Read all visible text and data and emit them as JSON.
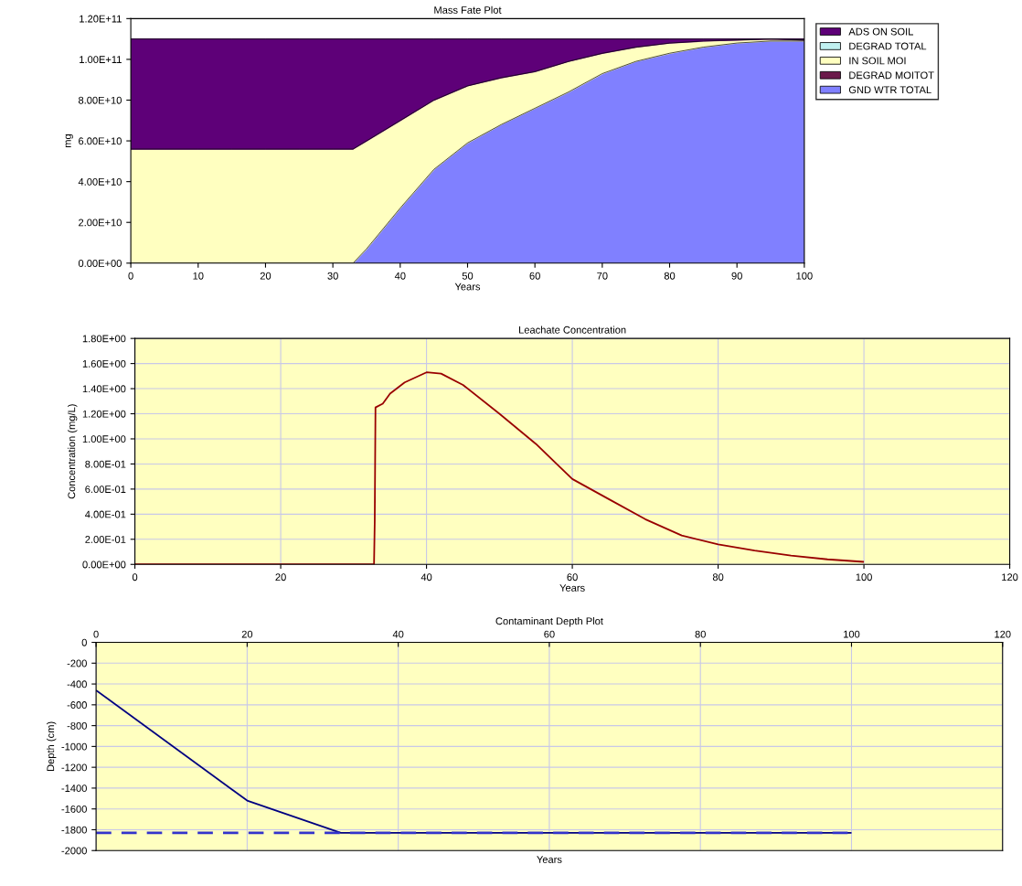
{
  "chart_data": [
    {
      "type": "area",
      "title": "Mass Fate Plot",
      "xlabel": "Years",
      "ylabel": "mg",
      "stacked": true,
      "x": [
        0,
        5,
        10,
        15,
        20,
        25,
        30,
        33,
        35,
        40,
        45,
        50,
        55,
        60,
        65,
        70,
        75,
        80,
        85,
        90,
        95,
        100
      ],
      "series": [
        {
          "name": "GND WTR TOTAL",
          "color": "#8080ff",
          "values": [
            0,
            0,
            0,
            0,
            0,
            0,
            0,
            0,
            7000000000.0,
            27000000000.0,
            46000000000.0,
            59000000000.0,
            68000000000.0,
            76000000000.0,
            84000000000.0,
            93000000000.0,
            99000000000.0,
            103000000000.0,
            106000000000.0,
            108000000000.0,
            109000000000.0,
            109000000000.0
          ]
        },
        {
          "name": "DEGRAD MOITOT",
          "color": "#6b1a4a",
          "values": [
            null,
            null,
            null,
            null,
            null,
            null,
            null,
            null,
            null,
            null,
            null,
            null,
            null,
            null,
            null,
            null,
            null,
            null,
            null,
            null,
            null,
            null
          ]
        },
        {
          "name": "IN SOIL MOI",
          "color": "#ffffc0",
          "values": [
            56000000000.0,
            56000000000.0,
            56000000000.0,
            56000000000.0,
            56000000000.0,
            56000000000.0,
            56000000000.0,
            56000000000.0,
            53000000000.0,
            43000000000.0,
            34000000000.0,
            28000000000.0,
            23000000000.0,
            18000000000.0,
            15000000000.0,
            10000000000.0,
            7000000000.0,
            5000000000.0,
            3000000000.0,
            1500000000.0,
            1000000000.0,
            500000000.0
          ]
        },
        {
          "name": "DEGRAD TOTAL",
          "color": "#c0f0f0",
          "values": [
            null,
            null,
            null,
            null,
            null,
            null,
            null,
            null,
            null,
            null,
            null,
            null,
            null,
            null,
            null,
            null,
            null,
            null,
            null,
            null,
            null,
            null
          ]
        },
        {
          "name": "ADS ON SOIL",
          "color": "#5e0078",
          "values": [
            54000000000.0,
            54000000000.0,
            54000000000.0,
            54000000000.0,
            54000000000.0,
            54000000000.0,
            54000000000.0,
            54000000000.0,
            50000000000.0,
            40000000000.0,
            30000000000.0,
            23000000000.0,
            19000000000.0,
            16000000000.0,
            11000000000.0,
            7000000000.0,
            4000000000.0,
            2000000000.0,
            1000000000.0,
            500000000.0,
            0.0,
            500000000.0
          ]
        }
      ],
      "xlim": [
        0,
        100
      ],
      "xticks": [
        0,
        10,
        20,
        30,
        40,
        50,
        60,
        70,
        80,
        90,
        100
      ],
      "ylim": [
        0,
        120000000000.0
      ],
      "yticks": [
        {
          "value": 0,
          "label": "0.00E+00"
        },
        {
          "value": 20000000000.0,
          "label": "2.00E+10"
        },
        {
          "value": 40000000000.0,
          "label": "4.00E+10"
        },
        {
          "value": 60000000000.0,
          "label": "6.00E+10"
        },
        {
          "value": 80000000000.0,
          "label": "8.00E+10"
        },
        {
          "value": 100000000000.0,
          "label": "1.00E+11"
        },
        {
          "value": 120000000000.0,
          "label": "1.20E+11"
        }
      ],
      "grid": false,
      "legend": "right"
    },
    {
      "type": "line",
      "title": "Leachate Concentration",
      "xlabel": "Years",
      "ylabel": "Concentration (mg/L)",
      "x": [
        0,
        32.8,
        32.9,
        33.0,
        34,
        35,
        37,
        40,
        42,
        45,
        50,
        55,
        60,
        65,
        70,
        75,
        80,
        85,
        90,
        95,
        100
      ],
      "series": [
        {
          "color": "#990000",
          "values": [
            0,
            0,
            0.35,
            1.25,
            1.28,
            1.36,
            1.45,
            1.53,
            1.52,
            1.43,
            1.2,
            0.96,
            0.68,
            0.52,
            0.36,
            0.23,
            0.16,
            0.11,
            0.07,
            0.04,
            0.02
          ]
        }
      ],
      "xlim": [
        0,
        120
      ],
      "xticks": [
        0,
        20,
        40,
        60,
        80,
        100,
        120
      ],
      "ylim": [
        0,
        1.8
      ],
      "yticks": [
        {
          "value": 0,
          "label": "0.00E+00"
        },
        {
          "value": 0.2,
          "label": "2.00E-01"
        },
        {
          "value": 0.4,
          "label": "4.00E-01"
        },
        {
          "value": 0.6,
          "label": "6.00E-01"
        },
        {
          "value": 0.8,
          "label": "8.00E-01"
        },
        {
          "value": 1.0,
          "label": "1.00E+00"
        },
        {
          "value": 1.2,
          "label": "1.20E+00"
        },
        {
          "value": 1.4,
          "label": "1.40E+00"
        },
        {
          "value": 1.6,
          "label": "1.60E+00"
        },
        {
          "value": 1.8,
          "label": "1.80E+00"
        }
      ],
      "grid": true,
      "legend": false
    },
    {
      "type": "line",
      "title": "Contaminant Depth Plot",
      "xlabel": "Years",
      "ylabel": "Depth (cm)",
      "series": [
        {
          "color": "#000080",
          "x": [
            0,
            20,
            32.4,
            100
          ],
          "values": [
            -460,
            -1520,
            -1830,
            -1830
          ],
          "line_style": "solid"
        },
        {
          "color": "#3333cc",
          "x": [
            0,
            100
          ],
          "values": [
            -1830,
            -1830
          ],
          "line_style": "dashed"
        }
      ],
      "xlim": [
        0,
        120
      ],
      "xticks": [
        0,
        20,
        40,
        60,
        80,
        100,
        120
      ],
      "ylim": [
        -2000,
        0
      ],
      "yticks": [
        0,
        -200,
        -400,
        -600,
        -800,
        -1000,
        -1200,
        -1400,
        -1600,
        -1800,
        -2000
      ],
      "grid": true,
      "legend": false
    }
  ]
}
